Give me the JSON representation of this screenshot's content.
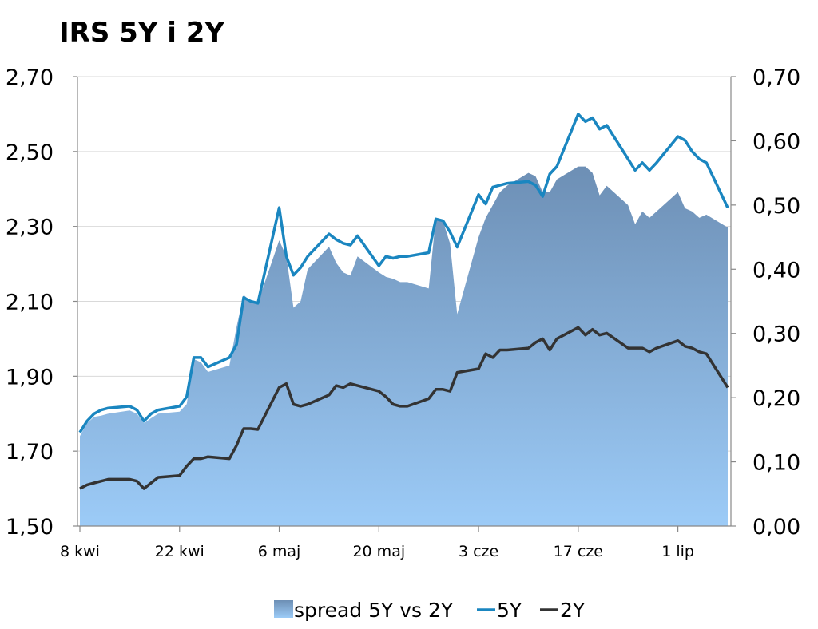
{
  "chart_data": {
    "type": "line+area",
    "title": "IRS 5Y i 2Y",
    "x_tick_labels": [
      "8 kwi",
      "22 kwi",
      "6 maj",
      "20 maj",
      "3 cze",
      "17 cze",
      "1 lip"
    ],
    "x_tick_day_index": [
      0,
      14,
      28,
      42,
      56,
      70,
      84
    ],
    "x_day_index": [
      0,
      1,
      2,
      3,
      4,
      7,
      8,
      9,
      10,
      11,
      14,
      15,
      16,
      17,
      18,
      21,
      22,
      23,
      24,
      25,
      28,
      29,
      30,
      31,
      32,
      35,
      36,
      37,
      38,
      39,
      42,
      43,
      44,
      45,
      46,
      49,
      50,
      51,
      52,
      53,
      56,
      57,
      58,
      59,
      60,
      63,
      64,
      65,
      66,
      67,
      70,
      71,
      72,
      73,
      74,
      77,
      78,
      79,
      80,
      81,
      84,
      85,
      86,
      87,
      88,
      91
    ],
    "y_left": {
      "min": 1.5,
      "max": 2.7,
      "ticks": [
        "1,50",
        "1,70",
        "1,90",
        "2,10",
        "2,30",
        "2,50",
        "2,70"
      ]
    },
    "y_right": {
      "min": 0,
      "max": 0.7,
      "ticks": [
        "0,00",
        "0,10",
        "0,20",
        "0,30",
        "0,40",
        "0,50",
        "0,60",
        "0,70"
      ]
    },
    "grid": true,
    "legend_position": "bottom",
    "series": [
      {
        "name": "spread 5Y vs 2Y",
        "kind": "area",
        "axis": "right",
        "color_top": "#6d8fb5",
        "color_bottom": "#9ccbf7",
        "values": [
          0.14,
          0.16,
          0.17,
          0.172,
          0.175,
          0.18,
          0.175,
          0.16,
          0.168,
          0.175,
          0.178,
          0.19,
          0.26,
          0.255,
          0.24,
          0.25,
          0.31,
          0.36,
          0.35,
          0.348,
          0.445,
          0.42,
          0.34,
          0.35,
          0.4,
          0.435,
          0.41,
          0.395,
          0.39,
          0.42,
          0.395,
          0.388,
          0.385,
          0.38,
          0.38,
          0.37,
          0.48,
          0.475,
          0.44,
          0.33,
          0.45,
          0.48,
          0.5,
          0.52,
          0.53,
          0.55,
          0.545,
          0.52,
          0.52,
          0.54,
          0.56,
          0.56,
          0.55,
          0.515,
          0.53,
          0.5,
          0.47,
          0.49,
          0.48,
          0.49,
          0.52,
          0.495,
          0.49,
          0.48,
          0.485,
          0.465
        ]
      },
      {
        "name": "5Y",
        "kind": "line",
        "axis": "left",
        "color": "#1a86c0",
        "values": [
          1.75,
          1.78,
          1.8,
          1.81,
          1.815,
          1.82,
          1.81,
          1.78,
          1.8,
          1.81,
          1.82,
          1.845,
          1.95,
          1.95,
          1.925,
          1.95,
          1.985,
          2.11,
          2.1,
          2.095,
          2.35,
          2.22,
          2.17,
          2.19,
          2.22,
          2.28,
          2.265,
          2.255,
          2.25,
          2.275,
          2.195,
          2.22,
          2.215,
          2.22,
          2.22,
          2.23,
          2.32,
          2.315,
          2.285,
          2.245,
          2.385,
          2.36,
          2.405,
          2.41,
          2.415,
          2.42,
          2.41,
          2.38,
          2.44,
          2.46,
          2.6,
          2.58,
          2.59,
          2.56,
          2.57,
          2.48,
          2.45,
          2.47,
          2.45,
          2.47,
          2.54,
          2.53,
          2.5,
          2.48,
          2.47,
          2.35
        ]
      },
      {
        "name": "2Y",
        "kind": "line",
        "axis": "left",
        "color": "#333333",
        "values": [
          1.6,
          1.61,
          1.615,
          1.62,
          1.625,
          1.625,
          1.62,
          1.6,
          1.615,
          1.63,
          1.635,
          1.66,
          1.68,
          1.68,
          1.685,
          1.68,
          1.715,
          1.76,
          1.76,
          1.758,
          1.87,
          1.88,
          1.825,
          1.82,
          1.825,
          1.85,
          1.875,
          1.87,
          1.88,
          1.875,
          1.86,
          1.845,
          1.825,
          1.82,
          1.82,
          1.84,
          1.865,
          1.865,
          1.86,
          1.91,
          1.92,
          1.96,
          1.95,
          1.97,
          1.97,
          1.975,
          1.99,
          2.0,
          1.97,
          2.0,
          2.03,
          2.01,
          2.025,
          2.01,
          2.015,
          1.975,
          1.975,
          1.975,
          1.965,
          1.975,
          1.995,
          1.98,
          1.975,
          1.965,
          1.96,
          1.87
        ]
      }
    ]
  }
}
